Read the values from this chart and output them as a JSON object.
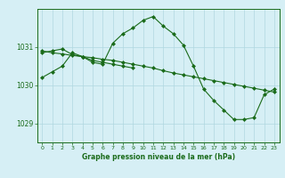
{
  "title": "Graphe pression niveau de la mer (hPa)",
  "background_color": "#d6eff5",
  "grid_color": "#b0d8e0",
  "line_color": "#1a6b1a",
  "marker_color": "#1a6b1a",
  "xlim": [
    -0.5,
    23.5
  ],
  "ylim": [
    1028.5,
    1032.0
  ],
  "yticks": [
    1029,
    1030,
    1031
  ],
  "xticks": [
    0,
    1,
    2,
    3,
    4,
    5,
    6,
    7,
    8,
    9,
    10,
    11,
    12,
    13,
    14,
    15,
    16,
    17,
    18,
    19,
    20,
    21,
    22,
    23
  ],
  "series1": {
    "x": [
      0,
      1,
      2,
      3,
      4,
      5,
      6,
      7,
      8,
      9,
      10,
      11,
      12,
      13,
      14,
      15,
      16,
      17,
      18,
      19,
      20,
      21,
      22,
      23
    ],
    "y": [
      1030.2,
      1030.35,
      1030.5,
      1030.85,
      1030.75,
      1030.6,
      1030.55,
      1031.1,
      1031.35,
      1031.5,
      1031.7,
      1031.8,
      1031.55,
      1031.35,
      1031.05,
      1030.5,
      1029.9,
      1029.6,
      1029.35,
      1029.1,
      1029.1,
      1029.15,
      1029.75,
      1029.9
    ]
  },
  "series2": {
    "x": [
      0,
      1,
      2,
      3,
      4,
      5,
      6,
      7,
      8,
      9,
      10,
      11,
      12,
      13,
      14,
      15,
      16,
      17,
      18,
      19,
      20,
      21,
      22,
      23
    ],
    "y": [
      1030.9,
      1030.85,
      1030.82,
      1030.78,
      1030.75,
      1030.72,
      1030.68,
      1030.65,
      1030.6,
      1030.55,
      1030.5,
      1030.45,
      1030.38,
      1030.32,
      1030.27,
      1030.22,
      1030.17,
      1030.12,
      1030.07,
      1030.02,
      1029.97,
      1029.92,
      1029.87,
      1029.82
    ]
  },
  "series3": {
    "x": [
      0,
      1,
      2,
      3,
      4,
      5,
      6,
      7,
      8,
      9
    ],
    "y": [
      1030.85,
      1030.9,
      1030.95,
      1030.8,
      1030.75,
      1030.65,
      1030.6,
      1030.55,
      1030.5,
      1030.45
    ]
  }
}
